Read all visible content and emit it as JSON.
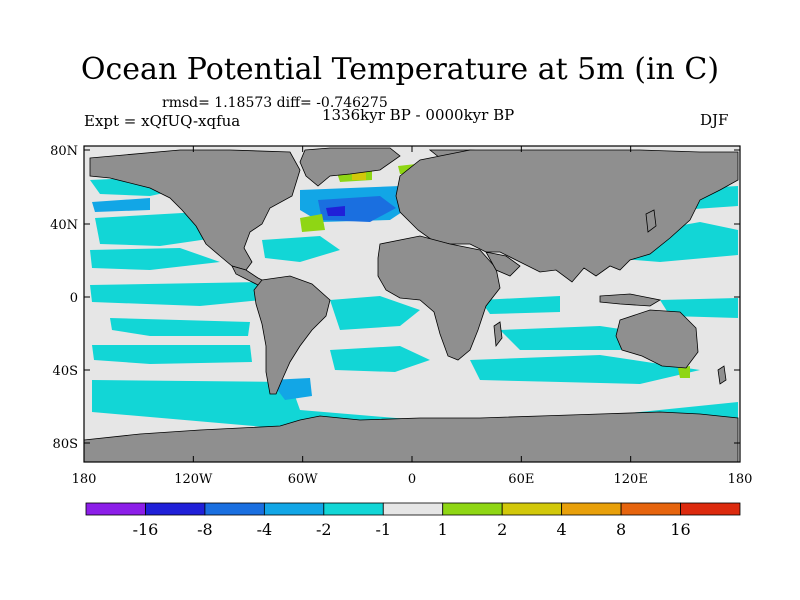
{
  "title": "Ocean Potential Temperature at 5m (in C)",
  "stats": "rmsd= 1.18573 diff= -0.746275",
  "experiment": "Expt = xQfUQ-xqfua",
  "period": "1336kyr BP - 0000kyr BP",
  "season": "DJF",
  "lon_ticks": [
    "180",
    "120W",
    "60W",
    "0",
    "60E",
    "120E",
    "180"
  ],
  "lat_ticks": [
    "80N",
    "40N",
    "0",
    "40S",
    "80S"
  ],
  "colorbar": {
    "labels": [
      "-16",
      "-8",
      "-4",
      "-2",
      "-1",
      "1",
      "2",
      "4",
      "8",
      "16"
    ],
    "colors": [
      "#8c1ee8",
      "#2020d8",
      "#1a6fe0",
      "#12a6e6",
      "#12d6d6",
      "#e6e6e6",
      "#8fd614",
      "#d2c80a",
      "#e8a00a",
      "#e6640e",
      "#dc2a0e"
    ]
  },
  "colors": {
    "land": "#8f8f8f",
    "ocean_neutral": "#e6e6e6",
    "cyan": "#12d6d6",
    "light_blue": "#12a6e6",
    "mid_blue": "#1a6fe0",
    "dark_blue": "#2020d8",
    "green": "#8fd614",
    "olive": "#d2c80a"
  }
}
